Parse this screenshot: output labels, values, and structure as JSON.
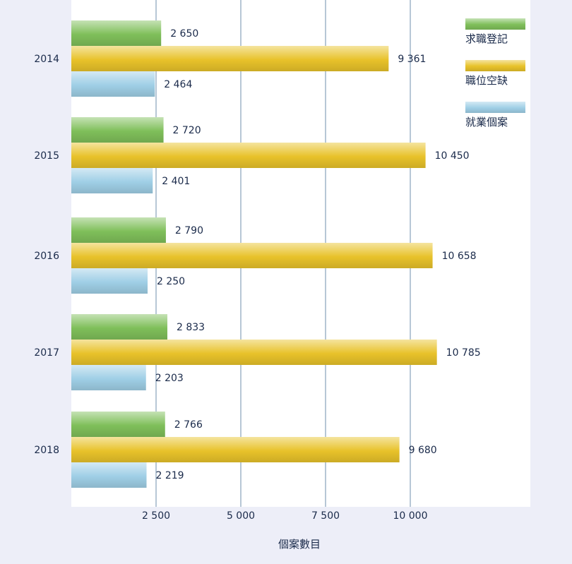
{
  "chart_data": {
    "type": "bar",
    "orientation": "horizontal",
    "categories": [
      "2014",
      "2015",
      "2016",
      "2017",
      "2018"
    ],
    "series": [
      {
        "name": "求職登記",
        "values": [
          2650,
          2720,
          2790,
          2833,
          2766
        ],
        "labels": [
          "2 650",
          "2 720",
          "2 790",
          "2 833",
          "2 766"
        ],
        "color": "#7fbf5a"
      },
      {
        "name": "職位空缺",
        "values": [
          9361,
          10450,
          10658,
          10785,
          9680
        ],
        "labels": [
          "9 361",
          "10 450",
          "10 658",
          "10 785",
          "9 680"
        ],
        "color": "#e8c22a"
      },
      {
        "name": "就業個案",
        "values": [
          2464,
          2401,
          2250,
          2203,
          2219
        ],
        "labels": [
          "2 464",
          "2 401",
          "2 250",
          "2 203",
          "2 219"
        ],
        "color": "#9fcfe6"
      }
    ],
    "xticks": [
      2500,
      5000,
      7500,
      10000
    ],
    "xtick_labels": [
      "2 500",
      "5 000",
      "7 500",
      "10  000"
    ],
    "xlabel": "個案數目",
    "ylabel": "",
    "xlim": [
      0,
      13556
    ],
    "grid": "vertical",
    "legend_position": "top-right"
  },
  "colors": {
    "page_background": "#edeef8",
    "plot_background": "#ffffff",
    "gridline": "#6f8fae",
    "text": "#1a2a4a"
  }
}
